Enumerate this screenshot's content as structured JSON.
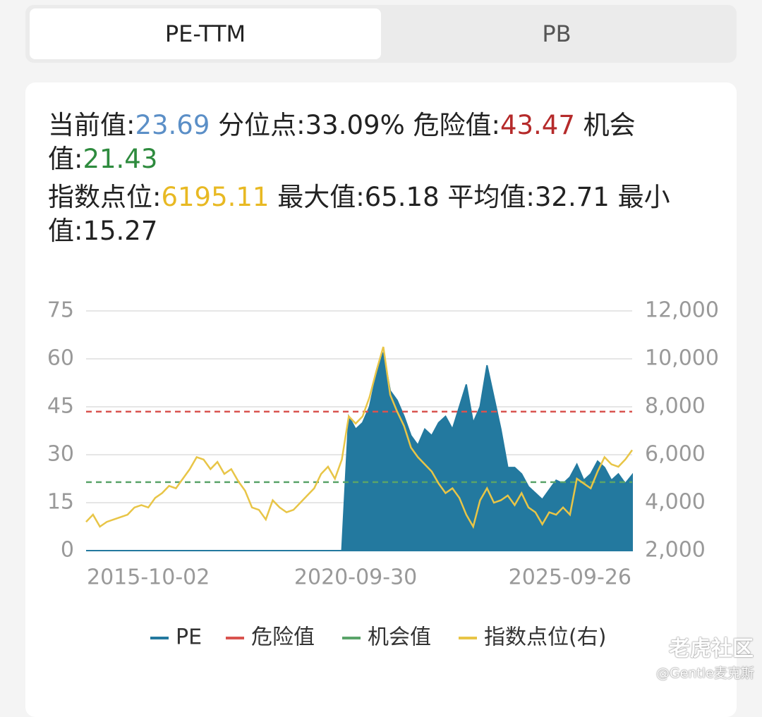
{
  "tabs": [
    "PE-TTM",
    "PB"
  ],
  "stats": {
    "current_label": "当前值:",
    "current": "23.69",
    "percentile_label": "分位点:",
    "percentile": "33.09%",
    "danger_label": "危险值:",
    "opportunity_label": "机会值:",
    "index_label": "指数点位:",
    "index": "6195.11",
    "max_label": "最大值:",
    "max": "65.18",
    "avg_label": "平均值:",
    "avg": "32.71",
    "min_label": "最小值:",
    "min": "15.27"
  },
  "chart_data": {
    "type": "area",
    "categories": [
      null,
      null,
      null,
      null,
      null,
      null,
      null,
      null,
      null,
      "2015-10-02",
      null,
      null,
      null,
      null,
      null,
      null,
      null,
      null,
      null,
      null,
      null,
      null,
      null,
      null,
      null,
      null,
      null,
      null,
      null,
      null,
      null,
      null,
      null,
      null,
      null,
      null,
      null,
      null,
      null,
      "2020-09-30",
      null,
      null,
      null,
      null,
      null,
      null,
      null,
      null,
      null,
      null,
      null,
      null,
      null,
      null,
      null,
      null,
      null,
      null,
      null,
      null,
      null,
      null,
      null,
      null,
      null,
      null,
      null,
      null,
      null,
      null,
      "2025-09-26",
      null,
      null,
      null,
      null,
      null,
      null,
      null,
      null,
      null
    ],
    "series": [
      {
        "name": "PE",
        "color": "#23799f",
        "values": [
          0,
          0,
          0,
          0,
          0,
          0,
          0,
          0,
          0,
          0,
          0,
          0,
          0,
          0,
          0,
          0,
          0,
          0,
          0,
          0,
          0,
          0,
          0,
          0,
          0,
          0,
          0,
          0,
          0,
          0,
          0,
          0,
          0,
          0,
          0,
          0,
          0,
          0,
          42,
          38,
          40,
          45,
          55,
          62,
          50,
          47,
          42,
          36,
          33,
          38,
          36,
          40,
          42,
          38,
          45,
          52,
          40,
          45,
          58,
          48,
          38,
          26,
          26,
          24,
          20,
          18,
          16,
          19,
          22,
          21,
          23,
          27,
          22,
          24,
          28,
          26,
          22,
          24,
          21,
          23.69
        ]
      },
      {
        "name": "危险值",
        "color": "#d9534f",
        "value": 43.47
      },
      {
        "name": "机会值",
        "color": "#5aa469",
        "value": 21.43
      },
      {
        "name": "指数点位(右)",
        "color": "#e8c547",
        "axis": "y2",
        "values": [
          3200,
          3500,
          3000,
          3200,
          3300,
          3400,
          3500,
          3800,
          3900,
          3800,
          4200,
          4400,
          4700,
          4600,
          5000,
          5400,
          5900,
          5800,
          5400,
          5700,
          5200,
          5400,
          4900,
          4500,
          3800,
          3700,
          3300,
          4100,
          3800,
          3600,
          3700,
          4000,
          4300,
          4600,
          5200,
          5500,
          5000,
          5800,
          7600,
          7300,
          7600,
          8400,
          9500,
          10500,
          8500,
          7800,
          7200,
          6300,
          5900,
          5600,
          5300,
          4800,
          4400,
          4600,
          4200,
          3500,
          3000,
          4100,
          4600,
          4000,
          4100,
          4300,
          3900,
          4400,
          3800,
          3600,
          3100,
          3600,
          3500,
          3800,
          3500,
          5000,
          4800,
          4600,
          5300,
          5900,
          5600,
          5500,
          5800,
          6195.11
        ]
      }
    ],
    "ylim": [
      0,
      75
    ],
    "yticks": [
      0,
      15,
      30,
      45,
      60,
      75
    ],
    "y2lim": [
      2000,
      12000
    ],
    "y2ticks": [
      {
        "value": 2000,
        "label": "2,000"
      },
      {
        "value": 4000,
        "label": "4,000"
      },
      {
        "value": 6000,
        "label": "6,000"
      },
      {
        "value": 8000,
        "label": "8,000"
      },
      {
        "value": 10000,
        "label": "10,000"
      },
      {
        "value": 12000,
        "label": "12,000"
      }
    ],
    "grid": true,
    "legend": "bottom"
  },
  "watermark": {
    "brand": "老虎社区",
    "user": "@Gentle麦克斯"
  }
}
